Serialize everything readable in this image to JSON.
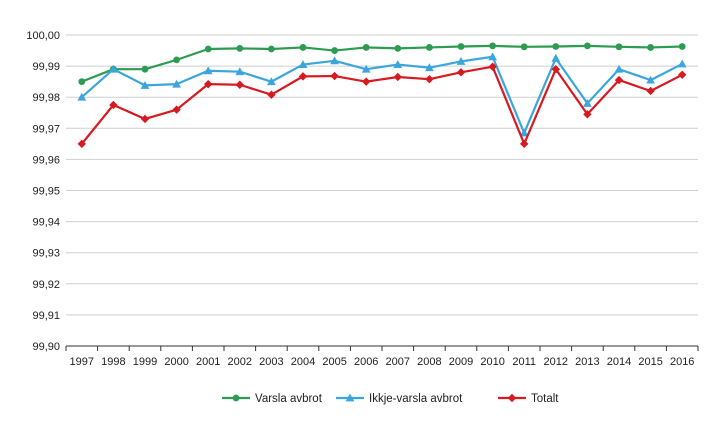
{
  "chart_data": {
    "type": "line",
    "title": "",
    "xlabel": "",
    "ylabel": "",
    "ylim": [
      99.9,
      100.0
    ],
    "y_ticks": [
      "99,90",
      "99,91",
      "99,92",
      "99,93",
      "99,94",
      "99,95",
      "99,96",
      "99,97",
      "99,98",
      "99,99",
      "100,00"
    ],
    "grid": "horizontal",
    "legend_position": "bottom",
    "x": [
      "1997",
      "1998",
      "1999",
      "2000",
      "2001",
      "2002",
      "2003",
      "2004",
      "2005",
      "2006",
      "2007",
      "2008",
      "2009",
      "2010",
      "2011",
      "2012",
      "2013",
      "2014",
      "2015",
      "2016"
    ],
    "series": [
      {
        "name": "Varsla avbrot",
        "color": "#2e9b52",
        "marker": "circle",
        "values": [
          99.985,
          99.989,
          99.989,
          99.992,
          99.9955,
          99.9957,
          99.9955,
          99.996,
          99.995,
          99.996,
          99.9957,
          99.996,
          99.9963,
          99.9965,
          99.9962,
          99.9963,
          99.9965,
          99.9962,
          99.996,
          99.9963
        ]
      },
      {
        "name": "Ikkje-varsla avbrot",
        "color": "#3ba6dc",
        "marker": "triangle",
        "values": [
          99.98,
          99.989,
          99.9838,
          99.9842,
          99.9885,
          99.9882,
          99.985,
          99.9905,
          99.9917,
          99.989,
          99.9905,
          99.9895,
          99.9915,
          99.993,
          99.9685,
          99.9925,
          99.978,
          99.989,
          99.9855,
          99.9907
        ]
      },
      {
        "name": "Totalt",
        "color": "#d71920",
        "marker": "diamond",
        "values": [
          99.965,
          99.9775,
          99.973,
          99.976,
          99.9842,
          99.984,
          99.9808,
          99.9867,
          99.9868,
          99.985,
          99.9865,
          99.9858,
          99.988,
          99.9898,
          99.965,
          99.989,
          99.9745,
          99.9855,
          99.982,
          99.9872
        ]
      }
    ]
  }
}
